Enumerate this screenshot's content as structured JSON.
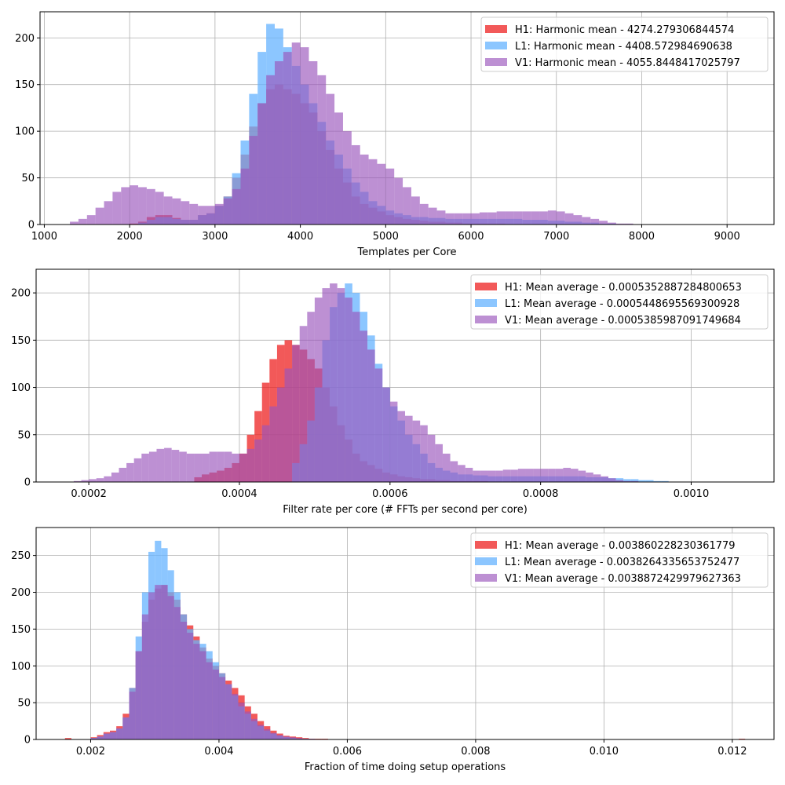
{
  "chart_data": [
    {
      "type": "histogram",
      "xlabel": "Templates per Core",
      "xlim": [
        950,
        9550
      ],
      "ylim": [
        0,
        228
      ],
      "xticks": [
        1000,
        2000,
        3000,
        4000,
        5000,
        6000,
        7000,
        8000,
        9000
      ],
      "xtick_labels": [
        "1000",
        "2000",
        "3000",
        "4000",
        "5000",
        "6000",
        "7000",
        "8000",
        "9000"
      ],
      "yticks": [
        0,
        50,
        100,
        150,
        200
      ],
      "ytick_labels": [
        "0",
        "50",
        "100",
        "150",
        "200"
      ],
      "grid": true,
      "legend_position": "top-right",
      "series": [
        {
          "name": "H1: Harmonic mean  - 4274.279306844574",
          "color": "#ee2222",
          "alpha": 0.75,
          "bins": {
            "start": 1300,
            "step": 100
          },
          "counts": [
            0,
            0,
            0,
            0,
            0,
            0,
            0,
            1,
            3,
            8,
            10,
            10,
            7,
            5,
            5,
            10,
            12,
            20,
            30,
            50,
            75,
            105,
            130,
            145,
            150,
            145,
            140,
            130,
            120,
            100,
            80,
            60,
            45,
            30,
            22,
            18,
            14,
            10,
            8,
            6,
            5,
            4,
            3,
            3,
            2,
            2,
            1,
            1,
            1,
            1,
            1,
            0,
            0,
            0,
            0,
            0,
            0,
            0,
            0,
            0,
            0,
            0,
            0,
            0,
            0,
            0,
            0,
            0,
            0,
            0,
            0,
            0,
            0,
            0,
            0,
            0,
            0,
            0,
            0
          ]
        },
        {
          "name": "L1: Harmonic mean  - 4408.572984690638",
          "color": "#66b3ff",
          "alpha": 0.75,
          "bins": {
            "start": 1300,
            "step": 100
          },
          "counts": [
            0,
            0,
            0,
            0,
            0,
            0,
            0,
            0,
            2,
            5,
            8,
            8,
            6,
            5,
            5,
            10,
            12,
            20,
            30,
            55,
            90,
            140,
            185,
            215,
            210,
            190,
            170,
            150,
            130,
            110,
            90,
            75,
            60,
            45,
            35,
            25,
            20,
            15,
            12,
            10,
            8,
            8,
            7,
            7,
            6,
            6,
            6,
            6,
            6,
            6,
            6,
            6,
            6,
            5,
            5,
            5,
            4,
            4,
            3,
            3,
            2,
            2,
            1,
            1,
            0,
            0,
            0,
            0,
            0,
            0,
            0,
            0,
            0,
            0,
            0,
            0,
            0,
            0,
            0
          ]
        },
        {
          "name": "V1: Harmonic mean  - 4055.8448417025797",
          "color": "#9955bb",
          "alpha": 0.65,
          "bins": {
            "start": 1300,
            "step": 100
          },
          "counts": [
            3,
            6,
            10,
            18,
            25,
            35,
            40,
            42,
            40,
            38,
            35,
            30,
            28,
            25,
            22,
            20,
            20,
            22,
            28,
            38,
            60,
            95,
            130,
            160,
            175,
            185,
            195,
            190,
            175,
            160,
            140,
            120,
            100,
            85,
            75,
            70,
            65,
            60,
            50,
            40,
            30,
            22,
            18,
            15,
            12,
            12,
            12,
            12,
            13,
            13,
            14,
            14,
            14,
            14,
            14,
            14,
            15,
            14,
            12,
            10,
            8,
            6,
            4,
            2,
            1,
            1,
            0,
            0,
            0,
            0,
            0,
            0,
            0,
            0,
            0,
            0,
            0,
            0,
            0
          ]
        }
      ]
    },
    {
      "type": "histogram",
      "xlabel": "Filter rate per core (# FFTs per second per core)",
      "xlim": [
        0.00013,
        0.00111
      ],
      "ylim": [
        0,
        225
      ],
      "xticks": [
        0.0002,
        0.0004,
        0.0006,
        0.0008,
        0.001
      ],
      "xtick_labels": [
        "0.0002",
        "0.0004",
        "0.0006",
        "0.0008",
        "0.0010"
      ],
      "yticks": [
        0,
        50,
        100,
        150,
        200
      ],
      "ytick_labels": [
        "0",
        "50",
        "100",
        "150",
        "200"
      ],
      "grid": true,
      "legend_position": "top-right",
      "series": [
        {
          "name": "H1: Mean average - 0.0005352887284800653",
          "color": "#ee2222",
          "alpha": 0.75,
          "bins": {
            "start": 0.00018,
            "step": 1e-05
          },
          "counts": [
            0,
            0,
            0,
            0,
            0,
            0,
            0,
            0,
            0,
            0,
            0,
            0,
            0,
            0,
            0,
            0,
            5,
            8,
            10,
            12,
            15,
            20,
            30,
            50,
            75,
            105,
            130,
            145,
            150,
            145,
            140,
            130,
            120,
            100,
            80,
            60,
            45,
            30,
            22,
            18,
            14,
            10,
            8,
            6,
            5,
            4,
            3,
            3,
            2,
            2,
            1,
            1,
            1,
            1,
            1,
            0,
            0,
            0,
            0,
            0,
            0,
            0,
            0,
            0,
            0,
            0,
            0,
            0,
            0,
            0,
            0,
            0,
            0,
            0,
            0,
            0,
            0,
            0,
            0,
            0,
            0,
            0,
            0,
            0,
            0,
            0,
            0,
            0
          ]
        },
        {
          "name": "L1: Mean average - 0.0005448695569300928",
          "color": "#66b3ff",
          "alpha": 0.75,
          "bins": {
            "start": 0.00018,
            "step": 1e-05
          },
          "counts": [
            0,
            0,
            0,
            0,
            0,
            0,
            0,
            0,
            0,
            0,
            0,
            0,
            0,
            0,
            0,
            0,
            0,
            0,
            0,
            0,
            0,
            0,
            0,
            0,
            0,
            0,
            0,
            0,
            0,
            20,
            40,
            65,
            100,
            150,
            185,
            200,
            210,
            200,
            180,
            155,
            125,
            100,
            80,
            65,
            50,
            40,
            30,
            20,
            15,
            12,
            10,
            8,
            8,
            7,
            7,
            6,
            6,
            6,
            6,
            6,
            6,
            6,
            6,
            6,
            6,
            6,
            6,
            6,
            5,
            5,
            5,
            4,
            4,
            3,
            3,
            2,
            2,
            1,
            1,
            0,
            0,
            0,
            0,
            0,
            0,
            0,
            0,
            0
          ]
        },
        {
          "name": "V1: Mean average - 0.0005385987091749684",
          "color": "#9955bb",
          "alpha": 0.65,
          "bins": {
            "start": 0.00018,
            "step": 1e-05
          },
          "counts": [
            1,
            2,
            3,
            4,
            6,
            10,
            15,
            20,
            25,
            30,
            32,
            35,
            36,
            34,
            32,
            30,
            30,
            30,
            32,
            32,
            32,
            30,
            30,
            35,
            45,
            60,
            80,
            100,
            120,
            145,
            165,
            180,
            195,
            205,
            210,
            205,
            195,
            180,
            160,
            140,
            120,
            100,
            85,
            75,
            70,
            65,
            60,
            50,
            40,
            30,
            22,
            18,
            15,
            12,
            12,
            12,
            12,
            13,
            13,
            14,
            14,
            14,
            14,
            14,
            14,
            15,
            14,
            12,
            10,
            8,
            6,
            4,
            2,
            1,
            1,
            0,
            0,
            0,
            0,
            0,
            0,
            0,
            0,
            0,
            0,
            0,
            0,
            0
          ]
        }
      ]
    },
    {
      "type": "histogram",
      "xlabel": "Fraction of time doing setup operations",
      "xlim": [
        0.00115,
        0.01265
      ],
      "ylim": [
        0,
        288
      ],
      "xticks": [
        0.002,
        0.004,
        0.006,
        0.008,
        0.01,
        0.012
      ],
      "xtick_labels": [
        "0.002",
        "0.004",
        "0.006",
        "0.008",
        "0.010",
        "0.012"
      ],
      "yticks": [
        0,
        50,
        100,
        150,
        200,
        250
      ],
      "ytick_labels": [
        "0",
        "50",
        "100",
        "150",
        "200",
        "250"
      ],
      "grid": true,
      "legend_position": "top-right",
      "series": [
        {
          "name": "H1: Mean average - 0.003860228230361779",
          "color": "#ee2222",
          "alpha": 0.75,
          "bins": {
            "start": 0.0016,
            "step": 0.0001
          },
          "counts": [
            2,
            0,
            0,
            0,
            3,
            6,
            10,
            12,
            18,
            35,
            70,
            120,
            160,
            190,
            205,
            210,
            200,
            190,
            170,
            155,
            140,
            125,
            110,
            100,
            90,
            80,
            70,
            60,
            45,
            35,
            25,
            18,
            12,
            8,
            5,
            4,
            3,
            2,
            1,
            1,
            1,
            0,
            0,
            0,
            0,
            0,
            0,
            0,
            0,
            0,
            0,
            0,
            0,
            0,
            0,
            0,
            0,
            0,
            0,
            0,
            0,
            0,
            0,
            0,
            0,
            0,
            0,
            0,
            0,
            0,
            0,
            0,
            0,
            0,
            0,
            0,
            0,
            0,
            0,
            0,
            0,
            0,
            0,
            0,
            0,
            0,
            0,
            0,
            0,
            0,
            0,
            0,
            0,
            0,
            0,
            0,
            0,
            0,
            0,
            0,
            0,
            0,
            0,
            0,
            0,
            1
          ]
        },
        {
          "name": "L1: Mean average - 0.0038264335653752477",
          "color": "#66b3ff",
          "alpha": 0.75,
          "bins": {
            "start": 0.0016,
            "step": 0.0001
          },
          "counts": [
            0,
            0,
            0,
            0,
            2,
            4,
            8,
            10,
            15,
            30,
            70,
            140,
            200,
            255,
            270,
            260,
            230,
            200,
            170,
            150,
            135,
            130,
            120,
            105,
            90,
            75,
            60,
            45,
            35,
            25,
            18,
            12,
            8,
            5,
            3,
            2,
            1,
            1,
            0,
            0,
            0,
            0,
            0,
            0,
            0,
            0,
            0,
            0,
            0,
            0,
            0,
            0,
            0,
            0,
            0,
            0,
            0,
            0,
            0,
            0,
            0,
            0,
            0,
            0,
            0,
            0,
            0,
            0,
            0,
            0,
            0,
            0,
            0,
            0,
            0,
            0,
            0,
            0,
            0,
            0,
            0,
            0,
            0,
            0,
            0,
            0,
            0,
            0,
            0,
            0,
            0,
            0,
            0,
            0,
            0,
            0,
            0,
            0,
            0,
            0,
            0,
            0,
            0,
            0,
            0,
            0
          ]
        },
        {
          "name": "V1: Mean average - 0.0038872429979627363",
          "color": "#9955bb",
          "alpha": 0.65,
          "bins": {
            "start": 0.0016,
            "step": 0.0001
          },
          "counts": [
            0,
            0,
            0,
            0,
            2,
            4,
            8,
            10,
            15,
            30,
            65,
            120,
            170,
            200,
            210,
            210,
            195,
            180,
            160,
            145,
            130,
            120,
            105,
            95,
            85,
            75,
            62,
            50,
            38,
            28,
            20,
            14,
            9,
            6,
            4,
            3,
            2,
            1,
            1,
            0,
            0,
            0,
            0,
            0,
            0,
            0,
            0,
            0,
            0,
            0,
            0,
            0,
            0,
            0,
            0,
            0,
            0,
            0,
            0,
            0,
            0,
            0,
            0,
            0,
            0,
            0,
            0,
            0,
            0,
            0,
            0,
            0,
            0,
            0,
            0,
            0,
            0,
            0,
            0,
            0,
            0,
            0,
            0,
            0,
            0,
            0,
            0,
            0,
            0,
            0,
            0,
            0,
            0,
            0,
            0,
            0,
            0,
            0,
            0,
            0,
            0,
            0,
            0,
            0,
            0,
            0
          ]
        }
      ]
    }
  ]
}
